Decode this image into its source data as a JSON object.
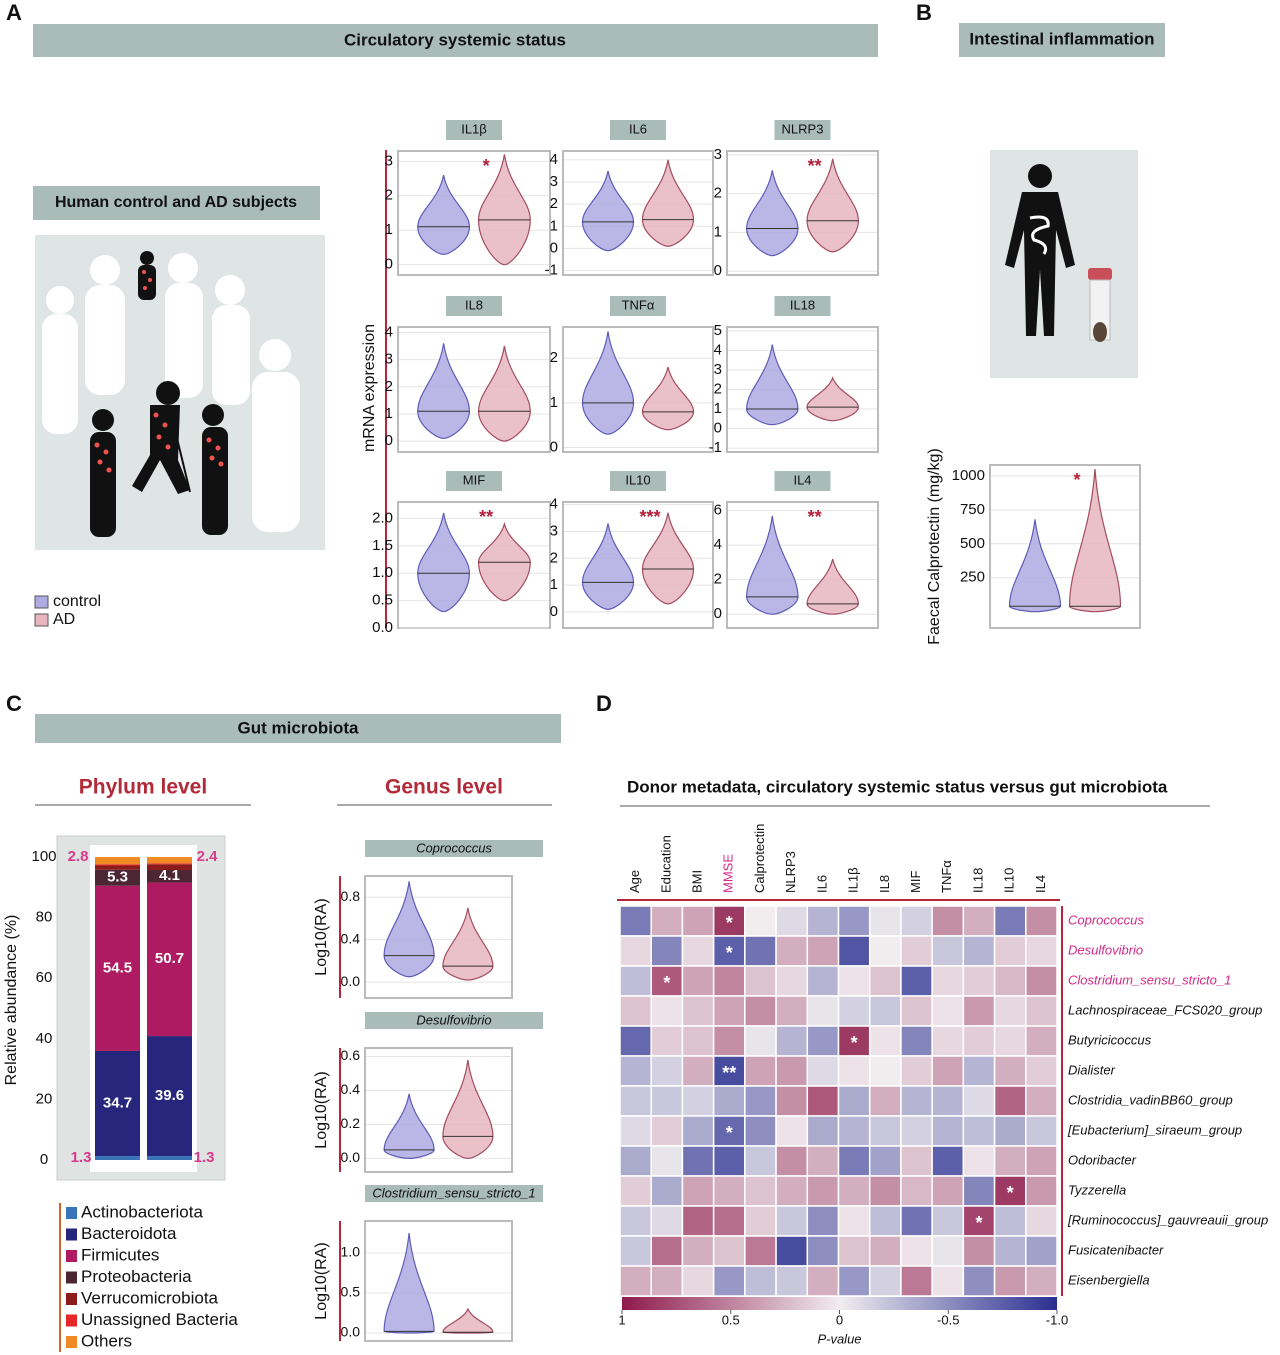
{
  "figure": {
    "panel_A": "A",
    "panel_B": "B",
    "panel_C": "C",
    "panel_D": "D",
    "circulatory_title": "Circulatory systemic status",
    "subjects_title": "Human control and AD subjects",
    "mrna_label": "mRNA expression",
    "intestinal_title": "Intestinal inflammation",
    "gut_title": "Gut microbiota",
    "phylum_title": "Phylum level",
    "genus_title": "Genus level",
    "legend": [
      {
        "name": "control",
        "color": "#aeaae2"
      },
      {
        "name": "AD",
        "color": "#e8b6c0"
      }
    ]
  },
  "chart_data": [
    {
      "type": "violin",
      "title": "IL1β",
      "ylim": [
        -0.3,
        3.3
      ],
      "yticks": [
        0,
        1,
        2,
        3
      ],
      "annotation": "*",
      "groups": [
        {
          "min": 0.3,
          "median": 1.1,
          "max": 2.6
        },
        {
          "min": 0,
          "median": 1.3,
          "max": 3.2
        }
      ]
    },
    {
      "type": "violin",
      "title": "IL6",
      "ylim": [
        -1.2,
        4.4
      ],
      "yticks": [
        -1,
        0,
        1,
        2,
        3,
        4
      ],
      "groups": [
        {
          "min": -0.1,
          "median": 1.2,
          "max": 3.5
        },
        {
          "min": 0.1,
          "median": 1.3,
          "max": 4.0
        }
      ]
    },
    {
      "type": "violin",
      "title": "NLRP3",
      "ylim": [
        -0.1,
        3.1
      ],
      "yticks": [
        0,
        1,
        2,
        3
      ],
      "annotation": "**",
      "groups": [
        {
          "min": 0.4,
          "median": 1.1,
          "max": 2.6
        },
        {
          "min": 0.5,
          "median": 1.3,
          "max": 2.9
        }
      ]
    },
    {
      "type": "violin",
      "title": "IL8",
      "ylim": [
        -0.4,
        4.2
      ],
      "yticks": [
        0,
        1,
        2,
        3,
        4
      ],
      "groups": [
        {
          "min": 0.1,
          "median": 1.1,
          "max": 3.6
        },
        {
          "min": 0,
          "median": 1.1,
          "max": 3.5
        }
      ]
    },
    {
      "type": "violin",
      "title": "TNFα",
      "ylim": [
        -0.1,
        2.7
      ],
      "yticks": [
        0,
        1,
        2
      ],
      "groups": [
        {
          "min": 0.3,
          "median": 1.0,
          "max": 2.6
        },
        {
          "min": 0.4,
          "median": 0.8,
          "max": 1.8
        }
      ]
    },
    {
      "type": "violin",
      "title": "IL18",
      "ylim": [
        -1.2,
        5.2
      ],
      "yticks": [
        -1,
        0,
        1,
        2,
        3,
        4,
        5
      ],
      "groups": [
        {
          "min": 0.2,
          "median": 1.0,
          "max": 4.3
        },
        {
          "min": 0.4,
          "median": 1.1,
          "max": 2.6
        }
      ]
    },
    {
      "type": "violin",
      "title": "MIF",
      "ylim": [
        0,
        2.3
      ],
      "yticks": [
        {
          "value": 0,
          "label": "0.0"
        },
        0.5,
        {
          "value": 1,
          "label": "1.0"
        },
        1.5,
        {
          "value": 2,
          "label": "2.0"
        }
      ],
      "annotation": "**",
      "groups": [
        {
          "min": 0.3,
          "median": 1.0,
          "max": 2.1
        },
        {
          "min": 0.5,
          "median": 1.2,
          "max": 1.9
        }
      ]
    },
    {
      "type": "violin",
      "title": "IL10",
      "ylim": [
        -0.6,
        4.1
      ],
      "yticks": [
        0,
        1,
        2,
        3,
        4
      ],
      "annotation": "***",
      "groups": [
        {
          "min": 0.1,
          "median": 1.1,
          "max": 3.3
        },
        {
          "min": 0.3,
          "median": 1.6,
          "max": 3.7
        }
      ]
    },
    {
      "type": "violin",
      "title": "IL4",
      "ylim": [
        -0.8,
        6.5
      ],
      "yticks": [
        0,
        2,
        4,
        6
      ],
      "annotation": "**",
      "groups": [
        {
          "min": 0,
          "median": 1.0,
          "max": 5.7
        },
        {
          "min": 0,
          "median": 0.6,
          "max": 3.2
        }
      ]
    },
    {
      "type": "violin",
      "ylabel": "Faecal Calprotectin (mg/kg)",
      "ylim": [
        -120,
        1080
      ],
      "yticks": [
        250,
        500,
        750,
        1000
      ],
      "annotation": "*",
      "groups": [
        {
          "min": 0,
          "median": 40,
          "max": 680
        },
        {
          "min": 0,
          "median": 40,
          "max": 1050
        }
      ]
    },
    {
      "type": "violin",
      "title": "Coprococcus",
      "ylabel": "Log10(RA)",
      "ylim": [
        -0.15,
        1.0
      ],
      "yticks": [
        {
          "value": 0,
          "label": "0.0"
        },
        0.4,
        0.8
      ],
      "groups": [
        {
          "min": 0.05,
          "median": 0.25,
          "max": 0.95
        },
        {
          "min": 0.02,
          "median": 0.15,
          "max": 0.7
        }
      ]
    },
    {
      "type": "violin",
      "title": "Desulfovibrio",
      "ylabel": "Log10(RA)",
      "ylim": [
        -0.08,
        0.65
      ],
      "yticks": [
        {
          "value": 0,
          "label": "0.0"
        },
        0.2,
        0.4,
        0.6
      ],
      "groups": [
        {
          "min": 0,
          "median": 0.05,
          "max": 0.38
        },
        {
          "min": 0,
          "median": 0.13,
          "max": 0.58
        }
      ]
    },
    {
      "type": "violin",
      "title": "Clostridium_sensu_stricto_1",
      "ylabel": "Log10(RA)",
      "ylim": [
        -0.1,
        1.4
      ],
      "yticks": [
        {
          "value": 0,
          "label": "0.0"
        },
        0.5,
        {
          "value": 1,
          "label": "1.0"
        }
      ],
      "groups": [
        {
          "min": 0,
          "median": 0.02,
          "max": 1.25
        },
        {
          "min": 0,
          "median": 0.01,
          "max": 0.3
        }
      ]
    },
    {
      "type": "stacked_bar",
      "ylabel": "Relative abundance (%)",
      "ylim": [
        0,
        100
      ],
      "yticks": [
        0,
        20,
        40,
        60,
        80,
        100
      ],
      "top_labels": [
        2.8,
        2.4
      ],
      "series": [
        {
          "name": "Actinobacteriota",
          "color": "#3a74b8",
          "values": [
            1.3,
            1.3
          ],
          "value_label_position": "outside"
        },
        {
          "name": "Bacteroidota",
          "color": "#25267c",
          "values": [
            34.7,
            39.6
          ],
          "value_label_position": "inside"
        },
        {
          "name": "Firmicutes",
          "color": "#ae1b62",
          "values": [
            54.5,
            50.7
          ],
          "value_label_position": "inside"
        },
        {
          "name": "Proteobacteria",
          "color": "#4d2633",
          "values": [
            5.3,
            4.1
          ],
          "value_label_position": "inside"
        },
        {
          "name": "Verrucomicrobiota",
          "color": "#8c1c1c",
          "values": [
            1.4,
            1.9
          ]
        },
        {
          "name": "Unassigned Bacteria",
          "color": "#e5262a",
          "values": [
            0.4,
            0.3
          ]
        },
        {
          "name": "Others",
          "color": "#f08a24",
          "values": [
            2.4,
            2.1
          ]
        }
      ]
    },
    {
      "type": "heatmap",
      "title": "Donor metadata, circulatory systemic status versus gut microbiota",
      "columns": [
        "Age",
        "Education",
        "BMI",
        "MMSE",
        "Calprotectin",
        "NLRP3",
        "IL6",
        "IL1β",
        "IL8",
        "MIF",
        "TNFα",
        "IL18",
        "IL10",
        "IL4"
      ],
      "rows": [
        "Coprococcus",
        "Desulfovibrio",
        "Clostridium_sensu_stricto_1",
        "Lachnospiraceae_FCS020_group",
        "Butyricicoccus",
        "Dialister",
        "Clostridia_vadinBB60_group",
        "[Eubacterium]_siraeum_group",
        "Odoribacter",
        "Tyzzerella",
        "[Ruminococcus]_gauvreauii_group",
        "Fusicatenibacter",
        "Eisenbergiella"
      ],
      "values": [
        [
          -0.6,
          0.3,
          0.35,
          0.85,
          0,
          -0.1,
          -0.3,
          -0.45,
          -0.05,
          -0.15,
          0.45,
          0.3,
          -0.6,
          0.45
        ],
        [
          0.1,
          -0.55,
          0.1,
          -0.75,
          -0.65,
          0.3,
          0.35,
          -0.8,
          0,
          0.15,
          -0.2,
          -0.3,
          0.15,
          0.1
        ],
        [
          -0.25,
          0.7,
          0.35,
          0.5,
          0.2,
          0.1,
          -0.3,
          0.05,
          0.2,
          -0.75,
          0.1,
          0.15,
          0.25,
          0.45
        ],
        [
          0.2,
          0.05,
          0.2,
          0.35,
          0.45,
          0.3,
          -0.05,
          -0.15,
          -0.2,
          0.2,
          0.05,
          0.4,
          0.1,
          0.2
        ],
        [
          -0.7,
          0.15,
          0.2,
          0.45,
          -0.05,
          -0.3,
          -0.45,
          0.85,
          0.05,
          -0.55,
          0.1,
          0.15,
          0.1,
          0.3
        ],
        [
          -0.3,
          -0.15,
          0.3,
          -0.85,
          0.35,
          0.4,
          -0.1,
          0.05,
          0,
          0.15,
          0.35,
          -0.3,
          0.3,
          0.15
        ],
        [
          -0.2,
          -0.2,
          -0.15,
          -0.35,
          -0.45,
          0.45,
          0.7,
          -0.35,
          0.3,
          -0.3,
          -0.3,
          -0.1,
          0.65,
          0.3
        ],
        [
          -0.1,
          0.15,
          -0.35,
          -0.7,
          -0.5,
          0.05,
          -0.35,
          -0.3,
          -0.2,
          -0.15,
          -0.3,
          -0.25,
          -0.35,
          -0.2
        ],
        [
          -0.35,
          -0.05,
          -0.65,
          -0.75,
          -0.2,
          0.45,
          0.3,
          -0.6,
          -0.4,
          0.2,
          -0.75,
          0.05,
          0.3,
          0.35
        ],
        [
          0.15,
          -0.35,
          0.35,
          0.3,
          0.2,
          0.3,
          0.4,
          0.3,
          0.45,
          0.25,
          0.35,
          -0.55,
          0.85,
          0.4
        ],
        [
          -0.2,
          -0.1,
          0.65,
          0.6,
          0.15,
          -0.2,
          -0.5,
          0.05,
          -0.25,
          -0.65,
          -0.2,
          0.8,
          -0.25,
          0.1
        ],
        [
          -0.2,
          0.6,
          0.3,
          0.2,
          0.55,
          -0.85,
          -0.5,
          0.2,
          0.3,
          0.05,
          -0.05,
          0.45,
          -0.3,
          -0.4
        ],
        [
          0.3,
          0.3,
          0.1,
          -0.45,
          -0.25,
          -0.2,
          0.3,
          -0.45,
          -0.15,
          0.55,
          0.05,
          -0.5,
          0.4,
          0.3
        ]
      ],
      "clim": [
        -1,
        1
      ],
      "colors": {
        "positive": "#8e1a4b",
        "negative": "#2a2f91"
      },
      "colorbar_ticks": [
        1,
        0.5,
        0,
        -0.5,
        {
          "value": -1,
          "label": "-1.0"
        }
      ],
      "colorbar_label": "P-value",
      "stars": [
        {
          "row": 0,
          "col": 3,
          "text": "*"
        },
        {
          "row": 1,
          "col": 3,
          "text": "*"
        },
        {
          "row": 2,
          "col": 1,
          "text": "*"
        },
        {
          "row": 4,
          "col": 7,
          "text": "*"
        },
        {
          "row": 5,
          "col": 3,
          "text": "**"
        },
        {
          "row": 7,
          "col": 3,
          "text": "*"
        },
        {
          "row": 9,
          "col": 12,
          "text": "*"
        },
        {
          "row": 10,
          "col": 11,
          "text": "*"
        }
      ],
      "highlight_rows": [
        0,
        1,
        2
      ],
      "highlight_columns": [
        3
      ],
      "highlight_color": "#d42a86"
    }
  ]
}
